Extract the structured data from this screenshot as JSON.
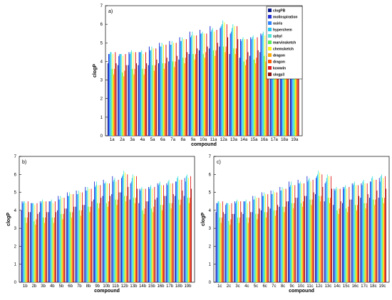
{
  "legend": [
    "clogPB",
    "molinspiration",
    "osiris",
    "hyperchem",
    "sybyl",
    "marvinsketch",
    "chemsketch",
    "dragon",
    "dragon",
    "kowwin",
    "slogp3"
  ],
  "colors": [
    "#0a1a8c",
    "#1f2fd6",
    "#2a7fff",
    "#22c8f0",
    "#4fe8d8",
    "#55ee55",
    "#f6f61c",
    "#ffaa00",
    "#ff5a00",
    "#e01a1a",
    "#8a1010"
  ],
  "chart_data": [
    {
      "type": "bar",
      "panel_label": "a)",
      "xlabel": "compound",
      "ylabel": "clogP",
      "ylim": [
        0,
        7
      ],
      "yticks": [
        0,
        1,
        2,
        3,
        4,
        5,
        6,
        7
      ],
      "categories": [
        "1a",
        "2a",
        "3a",
        "4a",
        "5a",
        "6a",
        "7a",
        "8a",
        "9a",
        "10a",
        "11a",
        "12a",
        "13a",
        "14a",
        "15a",
        "16a",
        "17a",
        "18a",
        "19a"
      ],
      "series": [
        {
          "name": "clogPB",
          "values": [
            3.9,
            3.8,
            3.8,
            3.8,
            3.8,
            3.9,
            4.0,
            4.1,
            4.4,
            4.6,
            4.7,
            4.8,
            4.4,
            4.2,
            4.3,
            4.5,
            4.6,
            4.6,
            4.6
          ]
        },
        {
          "name": "molinspiration",
          "values": [
            4.4,
            4.3,
            4.5,
            4.5,
            4.8,
            5.0,
            5.1,
            5.3,
            5.6,
            5.7,
            5.9,
            5.8,
            5.5,
            5.2,
            5.3,
            5.5,
            5.5,
            5.6,
            5.8
          ]
        },
        {
          "name": "osiris",
          "values": [
            4.4,
            4.4,
            4.4,
            4.5,
            4.6,
            4.8,
            4.9,
            5.1,
            5.3,
            5.5,
            5.6,
            5.9,
            5.6,
            5.1,
            5.2,
            5.4,
            5.4,
            5.6,
            5.6
          ]
        },
        {
          "name": "hyperchem",
          "values": [
            4.5,
            4.4,
            4.5,
            4.5,
            4.6,
            4.8,
            4.9,
            5.1,
            5.4,
            5.5,
            5.7,
            6.0,
            5.8,
            5.2,
            5.3,
            5.5,
            5.6,
            5.8,
            5.9
          ]
        },
        {
          "name": "sybyl",
          "values": [
            4.5,
            4.4,
            4.6,
            4.6,
            4.8,
            5.0,
            5.1,
            5.3,
            5.6,
            5.6,
            5.8,
            6.2,
            6.0,
            5.3,
            5.4,
            5.6,
            5.7,
            5.9,
            6.0
          ]
        },
        {
          "name": "marvinsketch",
          "values": [
            3.6,
            3.4,
            3.6,
            3.6,
            3.8,
            3.9,
            4.0,
            4.2,
            4.4,
            4.4,
            4.6,
            4.8,
            4.7,
            4.0,
            4.1,
            4.3,
            4.4,
            4.6,
            4.7
          ]
        },
        {
          "name": "chemsketch",
          "values": [
            4.4,
            4.3,
            4.5,
            4.4,
            4.7,
            4.9,
            5.0,
            5.2,
            5.4,
            5.5,
            5.6,
            6.1,
            5.9,
            5.2,
            5.2,
            5.4,
            5.5,
            5.7,
            5.8
          ]
        },
        {
          "name": "dragon",
          "values": [
            3.3,
            3.2,
            3.3,
            3.3,
            3.5,
            3.6,
            3.7,
            3.9,
            4.1,
            4.2,
            4.3,
            4.5,
            4.4,
            3.8,
            3.9,
            4.0,
            4.1,
            4.3,
            4.4
          ]
        },
        {
          "name": "dragon",
          "values": [
            3.6,
            3.5,
            3.6,
            3.6,
            3.8,
            3.9,
            4.0,
            4.2,
            4.4,
            4.5,
            4.6,
            4.8,
            4.7,
            4.1,
            4.2,
            4.3,
            4.4,
            4.6,
            4.7
          ]
        },
        {
          "name": "kowwin",
          "values": [
            4.5,
            4.4,
            4.5,
            4.5,
            4.7,
            4.9,
            5.0,
            5.2,
            5.4,
            5.5,
            5.7,
            6.0,
            5.9,
            5.2,
            5.3,
            5.4,
            5.5,
            5.7,
            5.9
          ]
        },
        {
          "name": "slogp3",
          "values": [
            3.9,
            3.8,
            3.9,
            3.9,
            4.1,
            4.2,
            4.3,
            4.5,
            4.7,
            4.8,
            5.0,
            5.3,
            5.2,
            4.5,
            4.6,
            4.8,
            4.9,
            5.1,
            5.2
          ]
        }
      ]
    },
    {
      "type": "bar",
      "panel_label": "b)",
      "xlabel": "compound",
      "ylabel": "clogP",
      "ylim": [
        0,
        7
      ],
      "yticks": [
        0,
        1,
        2,
        3,
        4,
        5,
        6,
        7
      ],
      "categories": [
        "1b",
        "2b",
        "3b",
        "4b",
        "5b",
        "6b",
        "7b",
        "8b",
        "9b",
        "10b",
        "11b",
        "12b",
        "13b",
        "14b",
        "15b",
        "16b",
        "17b",
        "18b",
        "19b"
      ],
      "series": [
        {
          "name": "clogPB",
          "values": [
            4.0,
            3.9,
            3.9,
            3.9,
            4.0,
            4.1,
            4.2,
            4.3,
            4.6,
            4.8,
            4.9,
            5.0,
            4.6,
            4.4,
            4.5,
            4.7,
            4.8,
            4.8,
            4.8
          ]
        },
        {
          "name": "molinspiration",
          "values": [
            4.5,
            4.4,
            4.5,
            4.5,
            4.8,
            5.0,
            5.1,
            5.3,
            5.6,
            5.7,
            5.9,
            5.8,
            5.5,
            5.2,
            5.3,
            5.5,
            5.5,
            5.6,
            5.8
          ]
        },
        {
          "name": "osiris",
          "values": [
            4.4,
            4.4,
            4.4,
            4.5,
            4.6,
            4.8,
            4.9,
            5.1,
            5.3,
            5.5,
            5.6,
            5.9,
            5.6,
            5.1,
            5.2,
            5.4,
            5.4,
            5.6,
            5.6
          ]
        },
        {
          "name": "hyperchem",
          "values": [
            4.5,
            4.4,
            4.5,
            4.5,
            4.6,
            4.8,
            4.9,
            5.1,
            5.4,
            5.5,
            5.7,
            6.0,
            5.8,
            5.2,
            5.3,
            5.5,
            5.6,
            5.8,
            5.9
          ]
        },
        {
          "name": "sybyl",
          "values": [
            4.5,
            4.4,
            4.6,
            4.6,
            4.8,
            5.0,
            5.1,
            5.3,
            5.6,
            5.6,
            5.8,
            6.2,
            6.0,
            5.3,
            5.4,
            5.6,
            5.7,
            5.9,
            6.0
          ]
        },
        {
          "name": "marvinsketch",
          "values": [
            3.6,
            3.4,
            3.6,
            3.6,
            3.8,
            3.9,
            4.0,
            4.2,
            4.4,
            4.4,
            4.6,
            4.8,
            4.7,
            4.0,
            4.1,
            4.3,
            4.4,
            4.6,
            4.7
          ]
        },
        {
          "name": "chemsketch",
          "values": [
            4.4,
            4.3,
            4.5,
            4.4,
            4.7,
            4.9,
            5.0,
            5.2,
            5.4,
            5.5,
            5.6,
            6.1,
            5.9,
            5.2,
            5.2,
            5.4,
            5.5,
            5.7,
            5.8
          ]
        },
        {
          "name": "dragon",
          "values": [
            3.3,
            3.2,
            3.3,
            3.3,
            3.5,
            3.6,
            3.7,
            3.9,
            4.1,
            4.2,
            4.3,
            4.5,
            4.4,
            3.8,
            3.9,
            4.0,
            4.1,
            4.3,
            4.4
          ]
        },
        {
          "name": "dragon",
          "values": [
            3.6,
            3.5,
            3.6,
            3.6,
            3.8,
            3.9,
            4.0,
            4.2,
            4.4,
            4.5,
            4.6,
            4.8,
            4.7,
            4.1,
            4.2,
            4.3,
            4.4,
            4.6,
            4.7
          ]
        },
        {
          "name": "kowwin",
          "values": [
            4.5,
            4.4,
            4.5,
            4.5,
            4.7,
            4.9,
            5.0,
            5.2,
            5.4,
            5.5,
            5.7,
            6.0,
            5.9,
            5.2,
            5.3,
            5.4,
            5.5,
            5.7,
            5.9
          ]
        },
        {
          "name": "slogp3",
          "values": [
            3.9,
            3.8,
            3.9,
            3.9,
            4.1,
            4.2,
            4.3,
            4.5,
            4.7,
            4.8,
            5.0,
            5.3,
            5.2,
            4.5,
            4.6,
            4.8,
            4.9,
            5.1,
            5.2
          ]
        }
      ]
    },
    {
      "type": "bar",
      "panel_label": "c)",
      "xlabel": "compound",
      "ylabel": "clogP",
      "ylim": [
        0,
        7
      ],
      "yticks": [
        0,
        1,
        2,
        3,
        4,
        5,
        6,
        7
      ],
      "categories": [
        "1c",
        "2c",
        "3c",
        "4c",
        "5c",
        "6c",
        "7c",
        "8c",
        "9c",
        "10c",
        "11c",
        "12c",
        "13c",
        "14c",
        "15c",
        "16c",
        "17c",
        "18c",
        "19c"
      ],
      "series": [
        {
          "name": "clogPB",
          "values": [
            3.9,
            3.8,
            3.8,
            3.8,
            3.9,
            4.0,
            4.1,
            4.2,
            4.5,
            4.7,
            4.8,
            4.9,
            4.5,
            4.3,
            4.4,
            4.6,
            4.7,
            4.7,
            4.7
          ]
        },
        {
          "name": "molinspiration",
          "values": [
            4.4,
            4.3,
            4.5,
            4.5,
            4.8,
            5.0,
            5.1,
            5.3,
            5.6,
            5.7,
            5.9,
            5.8,
            5.5,
            5.2,
            5.3,
            5.5,
            5.5,
            5.6,
            5.8
          ]
        },
        {
          "name": "osiris",
          "values": [
            4.4,
            4.4,
            4.4,
            4.5,
            4.6,
            4.8,
            4.9,
            5.1,
            5.3,
            5.5,
            5.6,
            5.9,
            5.6,
            5.1,
            5.2,
            5.4,
            5.4,
            5.6,
            5.6
          ]
        },
        {
          "name": "hyperchem",
          "values": [
            4.5,
            4.4,
            4.5,
            4.5,
            4.6,
            4.8,
            4.9,
            5.1,
            5.4,
            5.5,
            5.7,
            6.0,
            5.8,
            5.2,
            5.3,
            5.5,
            5.6,
            5.8,
            5.9
          ]
        },
        {
          "name": "sybyl",
          "values": [
            4.5,
            4.4,
            4.6,
            4.6,
            4.8,
            5.0,
            5.1,
            5.3,
            5.6,
            5.6,
            5.8,
            6.2,
            6.0,
            5.3,
            5.4,
            5.6,
            5.7,
            5.9,
            6.0
          ]
        },
        {
          "name": "marvinsketch",
          "values": [
            3.6,
            3.4,
            3.6,
            3.6,
            3.8,
            3.9,
            4.0,
            4.2,
            4.4,
            4.4,
            4.6,
            4.8,
            4.7,
            4.0,
            4.1,
            4.3,
            4.4,
            4.6,
            4.7
          ]
        },
        {
          "name": "chemsketch",
          "values": [
            4.4,
            4.3,
            4.5,
            4.4,
            4.7,
            4.9,
            5.0,
            5.2,
            5.4,
            5.5,
            5.6,
            6.1,
            5.9,
            5.2,
            5.2,
            5.4,
            5.5,
            5.7,
            5.8
          ]
        },
        {
          "name": "dragon",
          "values": [
            3.3,
            3.2,
            3.3,
            3.3,
            3.5,
            3.6,
            3.7,
            3.9,
            4.1,
            4.2,
            4.3,
            4.5,
            4.4,
            3.8,
            3.9,
            4.0,
            4.1,
            4.3,
            4.4
          ]
        },
        {
          "name": "dragon",
          "values": [
            3.6,
            3.5,
            3.6,
            3.6,
            3.8,
            3.9,
            4.0,
            4.2,
            4.4,
            4.5,
            4.6,
            4.8,
            4.7,
            4.1,
            4.2,
            4.3,
            4.4,
            4.6,
            4.7
          ]
        },
        {
          "name": "kowwin",
          "values": [
            4.5,
            4.4,
            4.5,
            4.5,
            4.7,
            4.9,
            5.0,
            5.2,
            5.4,
            5.5,
            5.7,
            6.0,
            5.9,
            5.2,
            5.3,
            5.4,
            5.5,
            5.7,
            5.9
          ]
        },
        {
          "name": "slogp3",
          "values": [
            3.9,
            3.8,
            3.9,
            3.9,
            4.1,
            4.2,
            4.3,
            4.5,
            4.7,
            4.8,
            5.0,
            5.3,
            5.2,
            4.5,
            4.6,
            4.8,
            4.9,
            5.1,
            5.2
          ]
        }
      ]
    }
  ]
}
